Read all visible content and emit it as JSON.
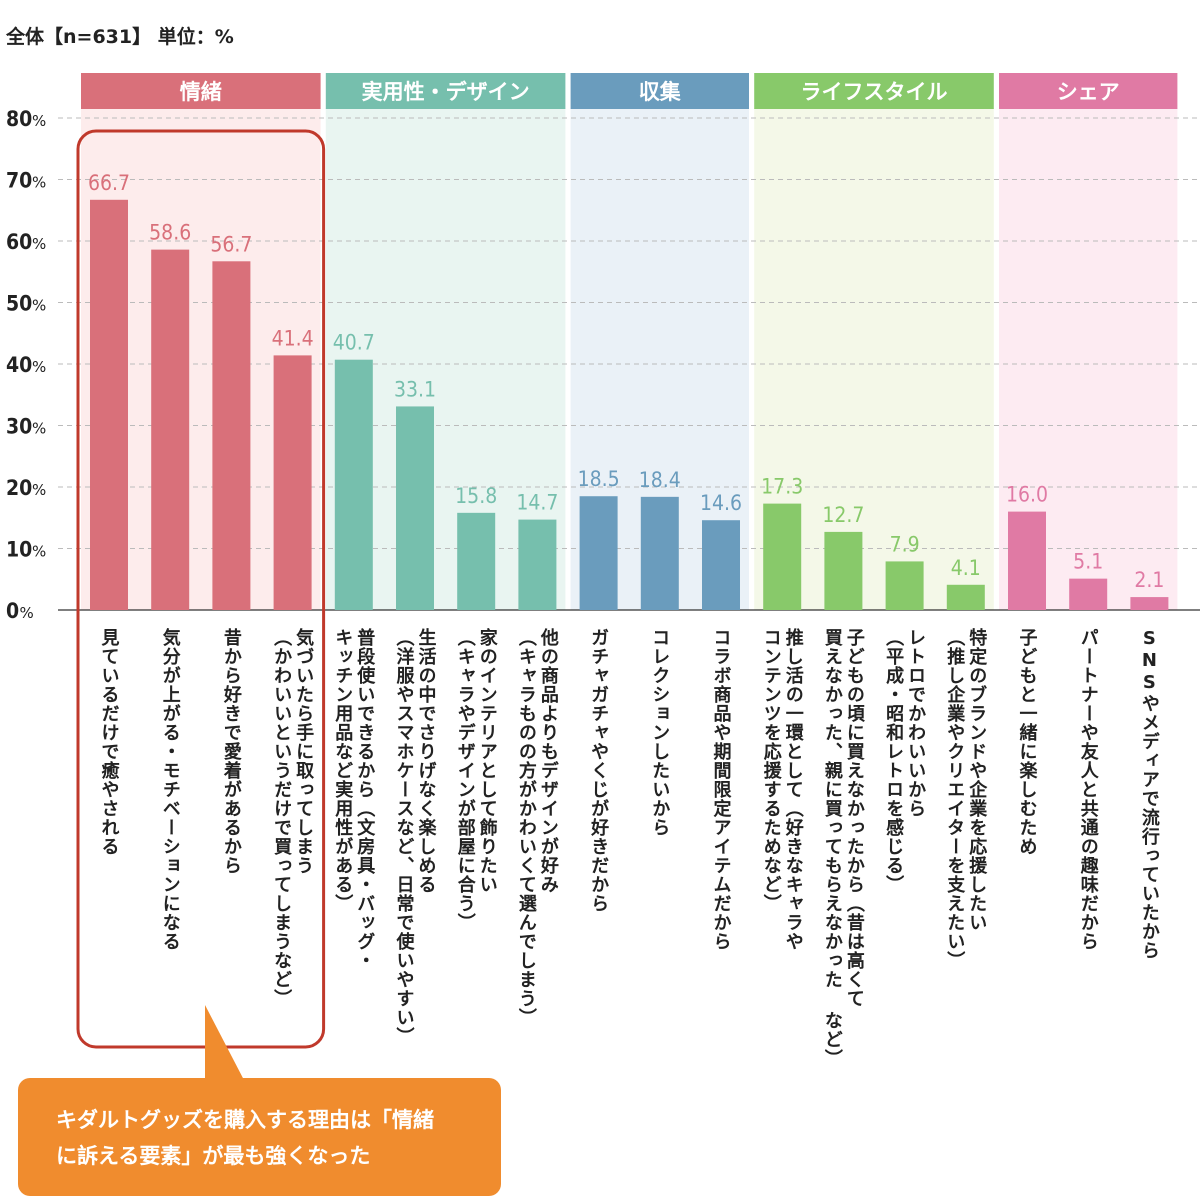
{
  "header": {
    "subtitle": "全体【n=631】 単位：%"
  },
  "callout": {
    "line1": "キダルトグッズを購入する理由は「情緒",
    "line2": "に訴える要素」が最も強くなった"
  },
  "chart_data": {
    "type": "bar",
    "title": "",
    "subtitle": "全体【n=631】 単位：%",
    "ylim": [
      0,
      80
    ],
    "yticks": [
      "80",
      "70",
      "60",
      "50",
      "40",
      "30",
      "20",
      "10",
      "0"
    ],
    "ytick_unit": "%",
    "grid": true,
    "groups": [
      {
        "name": "情緒",
        "color": "#d9707a",
        "bg": "#fdecec",
        "items": [
          {
            "label": "見ているだけで癒やされる",
            "value": 66.7
          },
          {
            "label": "気分が上がる・モチベーションになる",
            "value": 58.6
          },
          {
            "label": "昔から好きで愛着があるから",
            "value": 56.7
          },
          {
            "label": "気づいたら手に取ってしまう\n（かわいいというだけで買ってしまうなど）",
            "value": 41.4
          }
        ]
      },
      {
        "name": "実用性・デザイン",
        "color": "#76bfad",
        "bg": "#e9f5f1",
        "items": [
          {
            "label": "普段使いできるから（文房具・バッグ・\nキッチン用品など実用性がある）",
            "value": 40.7
          },
          {
            "label": "生活の中でさりげなく楽しめる\n（洋服やスマホケースなど、日常で使いやすい）",
            "value": 33.1
          },
          {
            "label": "家のインテリアとして飾りたい\n（キャラやデザインが部屋に合う）",
            "value": 15.8
          },
          {
            "label": "他の商品よりもデザインが好み\n（キャラものの方がかわいくて選んでしまう）",
            "value": 14.7
          }
        ]
      },
      {
        "name": "収集",
        "color": "#6a9cbd",
        "bg": "#eaf1f7",
        "items": [
          {
            "label": "ガチャガチャやくじが好きだから",
            "value": 18.5
          },
          {
            "label": "コレクションしたいから",
            "value": 18.4
          },
          {
            "label": "コラボ商品や期間限定アイテムだから",
            "value": 14.6
          }
        ]
      },
      {
        "name": "ライフスタイル",
        "color": "#88c96a",
        "bg": "#f4f8e8",
        "items": [
          {
            "label": "推し活の一環として（好きなキャラや\nコンテンツを応援するためなど）",
            "value": 17.3
          },
          {
            "label": "子どもの頃に買えなかったから（昔は高くて\n買えなかった、親に買ってもらえなかった など）",
            "value": 12.7
          },
          {
            "label": "レトロでかわいいから\n（平成・昭和レトロを感じる）",
            "value": 7.9
          },
          {
            "label": "特定のブランドや企業を応援したい\n（推し企業やクリエイターを支えたい）",
            "value": 4.1
          }
        ]
      },
      {
        "name": "シェア",
        "color": "#e07aa4",
        "bg": "#fdebf2",
        "items": [
          {
            "label": "子どもと一緒に楽しむため",
            "value": 16.0
          },
          {
            "label": "パートナーや友人と共通の趣味だから",
            "value": 5.1
          },
          {
            "label": "SNSやメディアで流行っていたから",
            "value": 2.1
          }
        ]
      }
    ],
    "highlight_group": "情緒",
    "highlight_color": "#c0392b",
    "callout_color": "#f08c2e"
  }
}
